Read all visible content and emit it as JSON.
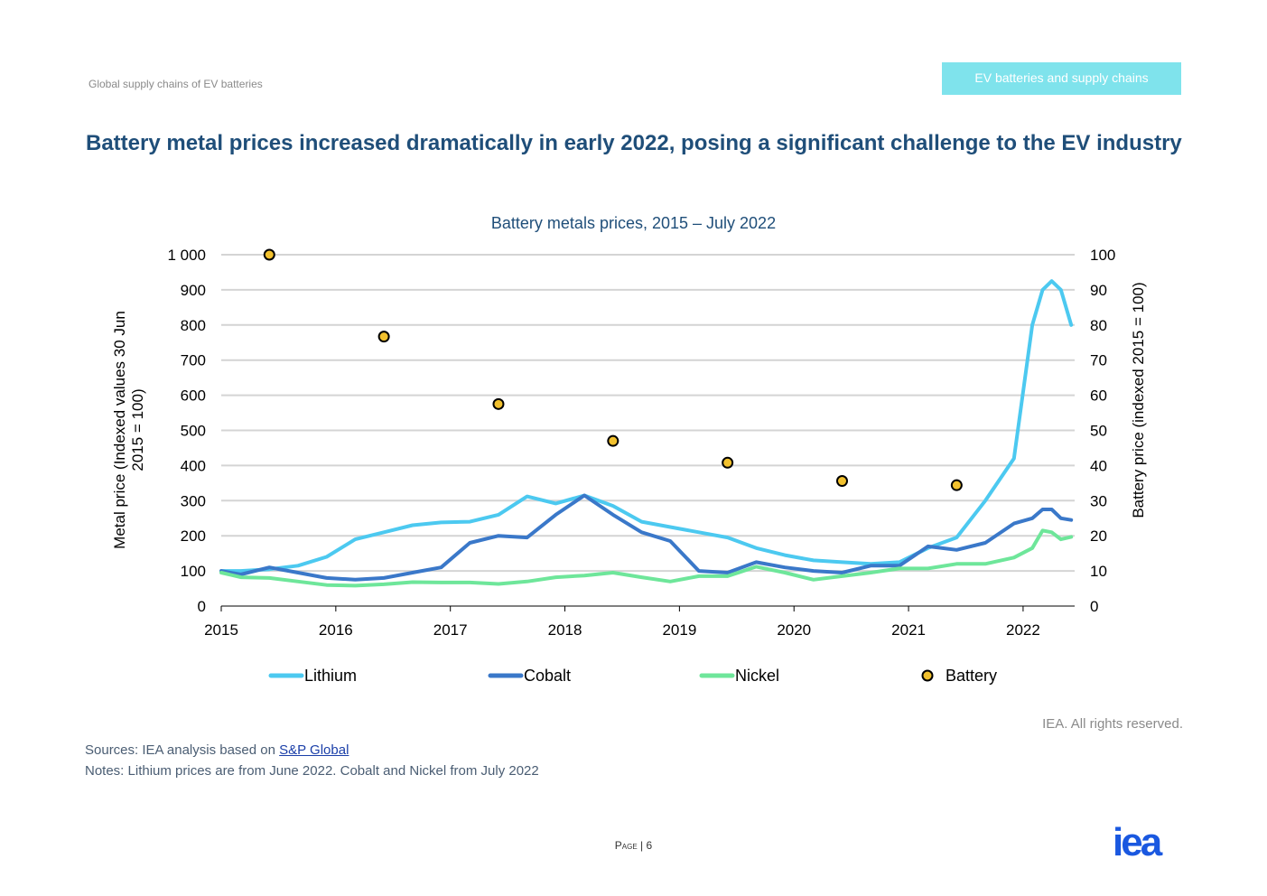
{
  "header": {
    "doc_title": "Global supply chains of EV batteries",
    "section_tab": "EV batteries and supply chains"
  },
  "slide": {
    "title": "Battery metal prices increased dramatically in early 2022, posing a significant challenge to the EV industry"
  },
  "footer": {
    "copyright": "IEA. All rights reserved.",
    "sources_prefix": "Sources: IEA analysis based on ",
    "sources_link": "S&P Global",
    "notes": "Notes: Lithium prices are from June 2022. Cobalt and Nickel from July 2022",
    "page_label": "Page",
    "page_number": "6",
    "logo_text": "iea"
  },
  "chart_data": {
    "type": "line",
    "title": "Battery metals prices, 2015 – July 2022",
    "ylabel": "Metal price (Indexed values 30 Jun 2015 = 100)",
    "y2label": "Battery price (indexed 2015 = 100)",
    "ylim": [
      0,
      1000
    ],
    "y2lim": [
      0,
      100
    ],
    "xlim": [
      2015,
      2022.45
    ],
    "x_ticks": [
      "2015",
      "2016",
      "2017",
      "2018",
      "2019",
      "2020",
      "2021",
      "2022"
    ],
    "y_ticks": [
      "0",
      "100",
      "200",
      "300",
      "400",
      "500",
      "600",
      "700",
      "800",
      "900",
      "1 000"
    ],
    "y2_ticks": [
      "0",
      "10",
      "20",
      "30",
      "40",
      "50",
      "60",
      "70",
      "80",
      "90",
      "100"
    ],
    "grid": true,
    "legend": "bottom",
    "series": [
      {
        "name": "Lithium",
        "axis": "left",
        "color": "#4cc9f0",
        "kind": "line",
        "x": [
          2015,
          2015.17,
          2015.42,
          2015.67,
          2015.92,
          2016.17,
          2016.42,
          2016.67,
          2016.92,
          2017.17,
          2017.42,
          2017.67,
          2017.92,
          2018.17,
          2018.42,
          2018.67,
          2018.92,
          2019.17,
          2019.42,
          2019.67,
          2019.92,
          2020.17,
          2020.42,
          2020.67,
          2020.92,
          2021.17,
          2021.42,
          2021.67,
          2021.92,
          2022.08,
          2022.17,
          2022.25,
          2022.33,
          2022.42
        ],
        "y": [
          100,
          100,
          105,
          115,
          140,
          190,
          210,
          230,
          238,
          240,
          260,
          312,
          292,
          315,
          285,
          240,
          225,
          210,
          195,
          165,
          145,
          130,
          125,
          120,
          125,
          165,
          195,
          300,
          420,
          800,
          900,
          925,
          900,
          800
        ]
      },
      {
        "name": "Cobalt",
        "axis": "left",
        "color": "#3a78c9",
        "kind": "line",
        "x": [
          2015,
          2015.17,
          2015.42,
          2015.67,
          2015.92,
          2016.17,
          2016.42,
          2016.67,
          2016.92,
          2017.17,
          2017.42,
          2017.67,
          2017.92,
          2018.17,
          2018.42,
          2018.67,
          2018.92,
          2019.17,
          2019.42,
          2019.67,
          2019.92,
          2020.17,
          2020.42,
          2020.67,
          2020.92,
          2021.17,
          2021.42,
          2021.67,
          2021.92,
          2022.08,
          2022.17,
          2022.25,
          2022.33,
          2022.42
        ],
        "y": [
          100,
          90,
          110,
          95,
          80,
          75,
          80,
          95,
          110,
          180,
          200,
          195,
          260,
          315,
          260,
          210,
          185,
          100,
          95,
          125,
          110,
          100,
          95,
          115,
          115,
          170,
          160,
          180,
          235,
          250,
          275,
          275,
          250,
          245
        ]
      },
      {
        "name": "Nickel",
        "axis": "left",
        "color": "#6ee69a",
        "kind": "line",
        "x": [
          2015,
          2015.17,
          2015.42,
          2015.67,
          2015.92,
          2016.17,
          2016.42,
          2016.67,
          2016.92,
          2017.17,
          2017.42,
          2017.67,
          2017.92,
          2018.17,
          2018.42,
          2018.67,
          2018.92,
          2019.17,
          2019.42,
          2019.67,
          2019.92,
          2020.17,
          2020.42,
          2020.67,
          2020.92,
          2021.17,
          2021.42,
          2021.67,
          2021.92,
          2022.08,
          2022.17,
          2022.25,
          2022.33,
          2022.42
        ],
        "y": [
          95,
          82,
          80,
          70,
          60,
          58,
          62,
          68,
          67,
          67,
          63,
          70,
          82,
          87,
          95,
          82,
          70,
          85,
          85,
          112,
          95,
          75,
          85,
          95,
          107,
          107,
          120,
          120,
          138,
          165,
          215,
          210,
          190,
          197
        ]
      },
      {
        "name": "Battery",
        "axis": "right",
        "color": "#f2c12e",
        "kind": "scatter",
        "x": [
          2015.42,
          2016.42,
          2017.42,
          2018.42,
          2019.42,
          2020.42,
          2021.42
        ],
        "y": [
          100,
          76.7,
          57.5,
          47,
          40.8,
          35.6,
          34.4
        ]
      }
    ]
  }
}
